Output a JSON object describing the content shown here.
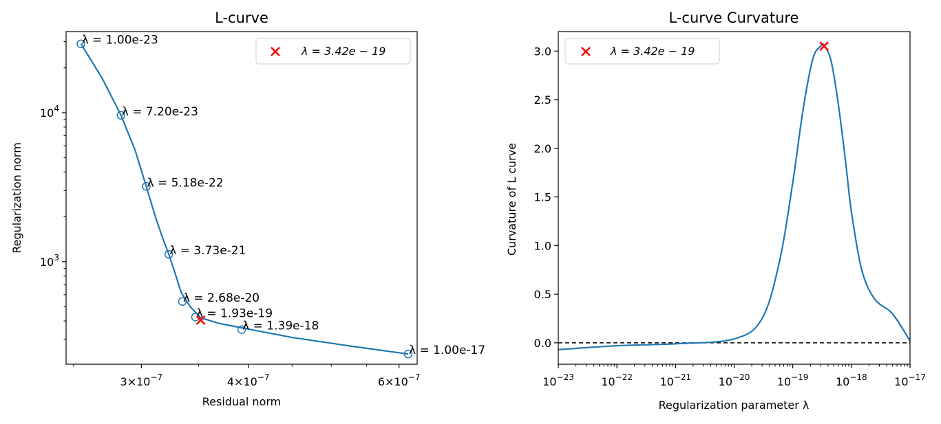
{
  "chart_data": [
    {
      "type": "line",
      "title": "L-curve",
      "xlabel": "Residual norm",
      "ylabel": "Regularization norm",
      "xscale": "log",
      "yscale": "log",
      "xlim": [
        2.45e-07,
        6.3e-07
      ],
      "ylim": [
        205,
        35000
      ],
      "xticks": [
        {
          "value": 3e-07,
          "mantissa": "3",
          "exp": "−7"
        },
        {
          "value": 4e-07,
          "mantissa": "4",
          "exp": "−7"
        },
        {
          "value": 6e-07,
          "mantissa": "6",
          "exp": "−7"
        }
      ],
      "yticks": [
        {
          "value": 1000,
          "base": "10",
          "exp": "3"
        },
        {
          "value": 10000,
          "base": "10",
          "exp": "4"
        }
      ],
      "curve": {
        "x": [
          2.55e-07,
          2.7e-07,
          2.84e-07,
          2.95e-07,
          3.04e-07,
          3.12e-07,
          3.18e-07,
          3.23e-07,
          3.28e-07,
          3.34e-07,
          3.42e-07,
          3.52e-07,
          3.7e-07,
          3.93e-07,
          4.5e-07,
          5.3e-07,
          6.15e-07
        ],
        "y": [
          29000,
          17000,
          9600,
          5600,
          3200,
          1950,
          1420,
          1120,
          860,
          620,
          500,
          420,
          385,
          360,
          310,
          270,
          240
        ]
      },
      "markers": {
        "x": [
          2.55e-07,
          2.84e-07,
          3.04e-07,
          3.23e-07,
          3.35e-07,
          3.47e-07,
          3.93e-07,
          6.15e-07
        ],
        "y": [
          29000,
          9600,
          3200,
          1120,
          540,
          425,
          350,
          240
        ],
        "labels": [
          "λ = 1.00e-23",
          "λ = 7.20e-23",
          "λ = 5.18e-22",
          "λ = 3.73e-21",
          "λ = 2.68e-20",
          "λ = 1.93e-19",
          "λ = 1.39e-18",
          "λ = 1.00e-17"
        ]
      },
      "optimum": {
        "x": 3.52e-07,
        "y": 405,
        "legend": "λ = 3.42e − 19"
      },
      "legend_position": "top-right",
      "colors": {
        "line": "#1f77b4",
        "optimum": "#ff0000"
      }
    },
    {
      "type": "line",
      "title": "L-curve Curvature",
      "xlabel": "Regularization parameter λ",
      "ylabel": "Curvature of L curve",
      "xscale": "log",
      "xlim": [
        1e-23,
        1e-17
      ],
      "ylim": [
        -0.22,
        3.2
      ],
      "xticks": [
        {
          "value": 1e-23,
          "base": "10",
          "exp": "−23"
        },
        {
          "value": 1e-22,
          "base": "10",
          "exp": "−22"
        },
        {
          "value": 1e-21,
          "base": "10",
          "exp": "−21"
        },
        {
          "value": 1e-20,
          "base": "10",
          "exp": "−20"
        },
        {
          "value": 1e-19,
          "base": "10",
          "exp": "−19"
        },
        {
          "value": 1e-18,
          "base": "10",
          "exp": "−18"
        },
        {
          "value": 1e-17,
          "base": "10",
          "exp": "−17"
        }
      ],
      "yticks": [
        "0.0",
        "0.5",
        "1.0",
        "1.5",
        "2.0",
        "2.5",
        "3.0"
      ],
      "series": {
        "x": [
          1e-23,
          1e-22,
          1e-21,
          1e-20,
          3e-20,
          6e-20,
          1e-19,
          1.5e-19,
          2.2e-19,
          3e-19,
          3.42e-19,
          4.5e-19,
          6e-19,
          8e-19,
          1e-18,
          1.5e-18,
          2.5e-18,
          5e-18,
          1e-17
        ],
        "y": [
          -0.07,
          -0.03,
          -0.01,
          0.04,
          0.25,
          0.85,
          1.65,
          2.4,
          2.92,
          3.05,
          3.06,
          2.9,
          2.45,
          1.85,
          1.35,
          0.75,
          0.45,
          0.3,
          0.02
        ]
      },
      "reference_line": {
        "y": 0.0,
        "style": "dashed"
      },
      "optimum": {
        "x": 3.42e-19,
        "y": 3.05,
        "legend": "λ = 3.42e − 19"
      },
      "legend_position": "top-left",
      "colors": {
        "line": "#1f77b4",
        "optimum": "#ff0000",
        "reference": "#000000"
      }
    }
  ]
}
